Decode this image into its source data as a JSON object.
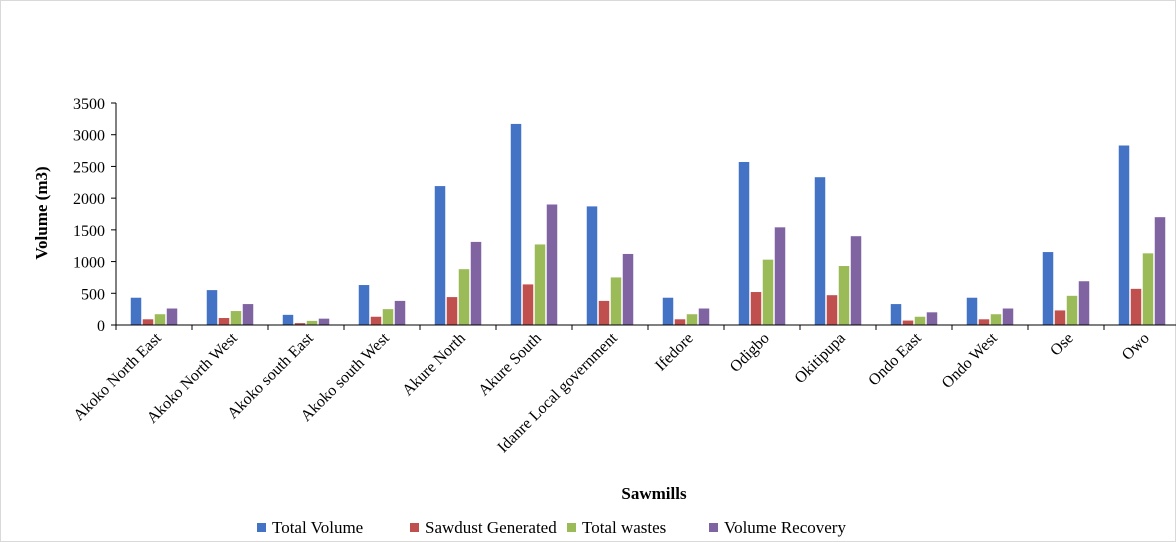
{
  "chart_data": {
    "type": "bar",
    "xlabel": "Sawmills",
    "ylabel": "Volume (m3)",
    "ylim": [
      0,
      3500
    ],
    "yticks": [
      0,
      500,
      1000,
      1500,
      2000,
      2500,
      3000,
      3500
    ],
    "grid": false,
    "legend": "bottom",
    "categories": [
      "Akoko North East",
      "Akoko North West",
      "Akoko south East",
      "Akoko south West",
      "Akure North",
      "Akure South",
      "Idanre Local government",
      "Ifedore",
      "Odigbo",
      "Okitipupa",
      "Ondo East",
      "Ondo West",
      "Ose",
      "Owo"
    ],
    "series": [
      {
        "name": "Total Volume",
        "color": "#4472C4",
        "values": [
          430,
          550,
          160,
          630,
          2190,
          3170,
          1870,
          430,
          2570,
          2330,
          330,
          430,
          1150,
          2830
        ]
      },
      {
        "name": "Sawdust Generated",
        "color": "#C0504D",
        "values": [
          90,
          110,
          30,
          130,
          440,
          640,
          380,
          90,
          520,
          470,
          70,
          90,
          230,
          570
        ]
      },
      {
        "name": "Total wastes",
        "color": "#9BBB59",
        "values": [
          170,
          220,
          65,
          250,
          880,
          1270,
          750,
          170,
          1030,
          930,
          130,
          170,
          460,
          1130
        ]
      },
      {
        "name": "Volume Recovery",
        "color": "#8064A2",
        "values": [
          260,
          330,
          100,
          380,
          1310,
          1900,
          1120,
          260,
          1540,
          1400,
          200,
          260,
          690,
          1700
        ]
      }
    ]
  }
}
